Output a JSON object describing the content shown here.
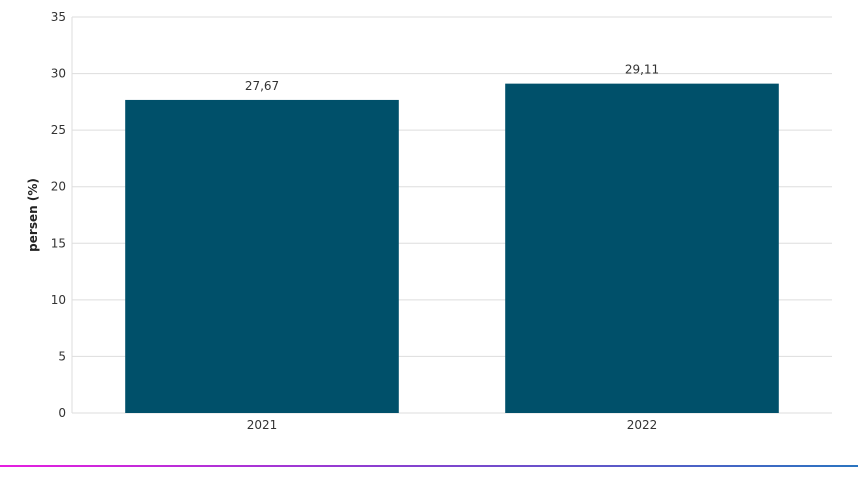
{
  "chart_data": {
    "type": "bar",
    "categories": [
      "2021",
      "2022"
    ],
    "values": [
      27.67,
      29.11
    ],
    "value_labels": [
      "27,67",
      "29,11"
    ],
    "ylabel": "persen (%)",
    "ylim": [
      0,
      35
    ],
    "yticks": [
      0,
      5,
      10,
      15,
      20,
      25,
      30,
      35
    ],
    "grid": true,
    "bar_color": "#00506a"
  }
}
